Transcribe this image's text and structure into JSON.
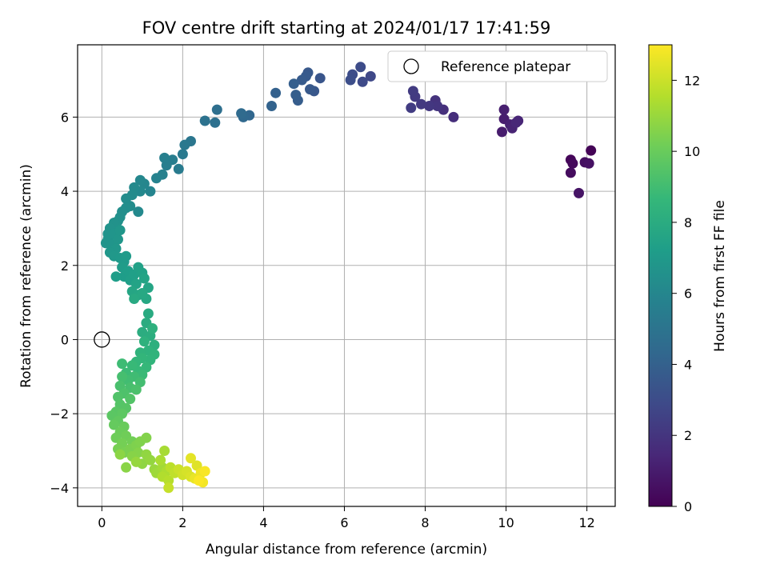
{
  "chart_data": {
    "type": "scatter",
    "title": "FOV centre drift starting at 2024/01/17 17:41:59",
    "xlabel": "Angular distance from reference (arcmin)",
    "ylabel": "Rotation from reference (arcmin)",
    "xlim": [
      -0.6,
      12.7
    ],
    "ylim": [
      -4.5,
      7.95
    ],
    "xticks": [
      0,
      2,
      4,
      6,
      8,
      10,
      12
    ],
    "yticks": [
      -4,
      -2,
      0,
      2,
      4,
      6
    ],
    "grid": true,
    "legend": {
      "placement": "upper right",
      "entries": [
        "Reference platepar"
      ]
    },
    "reference_point": {
      "x": 0,
      "y": 0,
      "label": "Reference platepar"
    },
    "colorbar": {
      "label": "Hours from first FF file",
      "colormap": "viridis",
      "range": [
        0,
        13
      ],
      "ticks": [
        0,
        2,
        4,
        6,
        8,
        10,
        12
      ]
    },
    "series": [
      {
        "columns": [
          "x",
          "y",
          "hours"
        ],
        "points": [
          [
            12.1,
            5.1,
            0.1
          ],
          [
            11.6,
            4.85,
            0.2
          ],
          [
            11.65,
            4.75,
            0.3
          ],
          [
            11.6,
            4.5,
            0.4
          ],
          [
            11.95,
            4.78,
            0.5
          ],
          [
            12.05,
            4.75,
            0.6
          ],
          [
            11.8,
            3.95,
            0.7
          ],
          [
            9.9,
            5.6,
            1.0
          ],
          [
            9.95,
            5.95,
            1.05
          ],
          [
            9.95,
            6.2,
            1.1
          ],
          [
            10.1,
            5.8,
            1.2
          ],
          [
            10.15,
            5.7,
            1.3
          ],
          [
            10.3,
            5.9,
            1.35
          ],
          [
            10.25,
            5.85,
            1.4
          ],
          [
            8.7,
            6.0,
            1.7
          ],
          [
            8.45,
            6.2,
            1.8
          ],
          [
            8.25,
            6.45,
            1.9
          ],
          [
            8.3,
            6.3,
            2.0
          ],
          [
            8.1,
            6.3,
            2.1
          ],
          [
            7.9,
            6.35,
            2.15
          ],
          [
            7.75,
            6.55,
            2.2
          ],
          [
            7.7,
            6.7,
            2.25
          ],
          [
            7.65,
            6.25,
            2.3
          ],
          [
            6.65,
            7.1,
            2.8
          ],
          [
            6.45,
            6.95,
            2.9
          ],
          [
            6.4,
            7.35,
            3.0
          ],
          [
            6.2,
            7.15,
            3.05
          ],
          [
            6.15,
            7.0,
            3.1
          ],
          [
            5.4,
            7.05,
            3.4
          ],
          [
            5.25,
            6.7,
            3.5
          ],
          [
            5.1,
            7.2,
            3.55
          ],
          [
            5.15,
            6.75,
            3.6
          ],
          [
            5.05,
            7.1,
            3.65
          ],
          [
            4.95,
            7.0,
            3.7
          ],
          [
            4.85,
            6.45,
            3.8
          ],
          [
            4.8,
            6.6,
            3.85
          ],
          [
            4.75,
            6.9,
            3.9
          ],
          [
            4.3,
            6.65,
            4.0
          ],
          [
            4.2,
            6.3,
            4.1
          ],
          [
            3.65,
            6.05,
            4.3
          ],
          [
            3.5,
            6.0,
            4.4
          ],
          [
            3.45,
            6.1,
            4.5
          ],
          [
            2.85,
            6.2,
            4.7
          ],
          [
            2.8,
            5.85,
            4.8
          ],
          [
            2.55,
            5.9,
            4.9
          ],
          [
            2.2,
            5.35,
            5.1
          ],
          [
            2.05,
            5.25,
            5.2
          ],
          [
            2.0,
            5.0,
            5.3
          ],
          [
            1.9,
            4.6,
            5.4
          ],
          [
            1.75,
            4.85,
            5.5
          ],
          [
            1.6,
            4.7,
            5.55
          ],
          [
            1.55,
            4.9,
            5.6
          ],
          [
            1.5,
            4.45,
            5.7
          ],
          [
            1.35,
            4.35,
            5.8
          ],
          [
            1.2,
            4.0,
            5.9
          ],
          [
            1.05,
            4.2,
            6.0
          ],
          [
            0.95,
            4.3,
            6.05
          ],
          [
            0.95,
            4.0,
            6.1
          ],
          [
            0.9,
            3.45,
            6.15
          ],
          [
            0.8,
            4.1,
            6.2
          ],
          [
            0.75,
            3.9,
            6.25
          ],
          [
            0.7,
            3.6,
            6.3
          ],
          [
            0.6,
            3.8,
            6.35
          ],
          [
            0.6,
            3.55,
            6.4
          ],
          [
            0.5,
            3.45,
            6.45
          ],
          [
            0.45,
            3.3,
            6.5
          ],
          [
            0.4,
            3.2,
            6.55
          ],
          [
            0.35,
            3.05,
            6.6
          ],
          [
            0.3,
            3.15,
            6.62
          ],
          [
            0.2,
            3.0,
            6.65
          ],
          [
            0.15,
            2.85,
            6.68
          ],
          [
            0.1,
            2.6,
            6.7
          ],
          [
            0.15,
            2.7,
            6.72
          ],
          [
            0.25,
            2.55,
            6.75
          ],
          [
            0.3,
            2.85,
            6.78
          ],
          [
            0.4,
            2.7,
            6.8
          ],
          [
            0.45,
            2.95,
            6.82
          ],
          [
            0.35,
            2.45,
            6.85
          ],
          [
            0.2,
            2.35,
            6.88
          ],
          [
            0.3,
            2.25,
            6.9
          ],
          [
            0.45,
            2.2,
            6.95
          ],
          [
            0.55,
            2.1,
            7.0
          ],
          [
            0.6,
            2.25,
            7.05
          ],
          [
            0.5,
            1.95,
            7.1
          ],
          [
            0.55,
            1.7,
            7.15
          ],
          [
            0.65,
            1.85,
            7.2
          ],
          [
            0.35,
            1.7,
            7.25
          ],
          [
            0.7,
            1.6,
            7.3
          ],
          [
            0.8,
            1.75,
            7.35
          ],
          [
            0.9,
            1.95,
            7.4
          ],
          [
            1.0,
            1.8,
            7.45
          ],
          [
            0.85,
            1.5,
            7.5
          ],
          [
            1.05,
            1.65,
            7.55
          ],
          [
            1.15,
            1.4,
            7.6
          ],
          [
            0.75,
            1.3,
            7.65
          ],
          [
            0.9,
            1.2,
            7.7
          ],
          [
            1.1,
            1.1,
            7.75
          ],
          [
            1.0,
            1.25,
            7.8
          ],
          [
            0.8,
            1.1,
            7.85
          ],
          [
            1.15,
            0.7,
            7.9
          ],
          [
            1.1,
            0.45,
            8.0
          ],
          [
            1.0,
            0.2,
            8.05
          ],
          [
            1.2,
            0.1,
            8.1
          ],
          [
            1.3,
            -0.15,
            8.2
          ],
          [
            1.25,
            0.3,
            8.25
          ],
          [
            1.05,
            -0.05,
            8.3
          ],
          [
            1.15,
            -0.3,
            8.35
          ],
          [
            0.95,
            -0.35,
            8.4
          ],
          [
            1.3,
            -0.4,
            8.45
          ],
          [
            1.2,
            -0.55,
            8.5
          ],
          [
            1.0,
            -0.5,
            8.55
          ],
          [
            0.85,
            -0.6,
            8.6
          ],
          [
            1.1,
            -0.75,
            8.65
          ],
          [
            0.9,
            -0.85,
            8.7
          ],
          [
            0.75,
            -0.7,
            8.75
          ],
          [
            1.0,
            -0.95,
            8.8
          ],
          [
            0.6,
            -0.9,
            8.85
          ],
          [
            0.5,
            -0.65,
            8.9
          ],
          [
            0.8,
            -1.0,
            8.95
          ],
          [
            0.65,
            -1.1,
            9.0
          ],
          [
            0.95,
            -1.15,
            9.05
          ],
          [
            0.5,
            -1.0,
            9.1
          ],
          [
            0.7,
            -1.3,
            9.15
          ],
          [
            0.45,
            -1.25,
            9.2
          ],
          [
            0.85,
            -1.35,
            9.25
          ],
          [
            0.55,
            -1.45,
            9.3
          ],
          [
            0.4,
            -1.55,
            9.4
          ],
          [
            0.7,
            -1.6,
            9.45
          ],
          [
            0.45,
            -1.75,
            9.5
          ],
          [
            0.6,
            -1.85,
            9.55
          ],
          [
            0.35,
            -1.95,
            9.6
          ],
          [
            0.25,
            -2.05,
            9.65
          ],
          [
            0.5,
            -2.0,
            9.7
          ],
          [
            0.4,
            -2.2,
            9.8
          ],
          [
            0.3,
            -2.3,
            9.9
          ],
          [
            0.55,
            -2.35,
            10.0
          ],
          [
            0.45,
            -2.5,
            10.05
          ],
          [
            0.35,
            -2.65,
            10.1
          ],
          [
            0.6,
            -2.6,
            10.15
          ],
          [
            0.75,
            -2.75,
            10.2
          ],
          [
            0.5,
            -2.8,
            10.25
          ],
          [
            0.4,
            -2.95,
            10.3
          ],
          [
            0.55,
            -3.05,
            10.35
          ],
          [
            0.7,
            -2.95,
            10.4
          ],
          [
            0.85,
            -2.85,
            10.45
          ],
          [
            0.95,
            -2.75,
            10.5
          ],
          [
            1.1,
            -2.65,
            10.55
          ],
          [
            0.9,
            -3.05,
            10.6
          ],
          [
            0.75,
            -3.15,
            10.65
          ],
          [
            0.6,
            -3.45,
            10.7
          ],
          [
            0.45,
            -3.1,
            10.75
          ],
          [
            1.0,
            -3.35,
            10.8
          ],
          [
            1.1,
            -3.1,
            10.85
          ],
          [
            1.2,
            -3.25,
            10.9
          ],
          [
            0.85,
            -3.3,
            10.95
          ],
          [
            1.3,
            -3.5,
            11.0
          ],
          [
            1.35,
            -3.6,
            11.1
          ],
          [
            1.5,
            -3.45,
            11.2
          ],
          [
            1.55,
            -3.0,
            11.3
          ],
          [
            1.45,
            -3.25,
            11.35
          ],
          [
            1.6,
            -3.55,
            11.4
          ],
          [
            1.5,
            -3.7,
            11.5
          ],
          [
            1.65,
            -3.8,
            11.6
          ],
          [
            1.7,
            -3.45,
            11.7
          ],
          [
            1.8,
            -3.6,
            11.8
          ],
          [
            1.65,
            -4.0,
            11.9
          ],
          [
            1.9,
            -3.5,
            12.0
          ],
          [
            2.0,
            -3.65,
            12.1
          ],
          [
            2.1,
            -3.55,
            12.2
          ],
          [
            2.2,
            -3.7,
            12.3
          ],
          [
            2.35,
            -3.4,
            12.4
          ],
          [
            2.2,
            -3.2,
            12.5
          ],
          [
            2.3,
            -3.75,
            12.6
          ],
          [
            2.45,
            -3.6,
            12.7
          ],
          [
            2.5,
            -3.85,
            12.8
          ],
          [
            2.55,
            -3.55,
            12.9
          ],
          [
            2.4,
            -3.8,
            12.95
          ]
        ]
      }
    ]
  }
}
